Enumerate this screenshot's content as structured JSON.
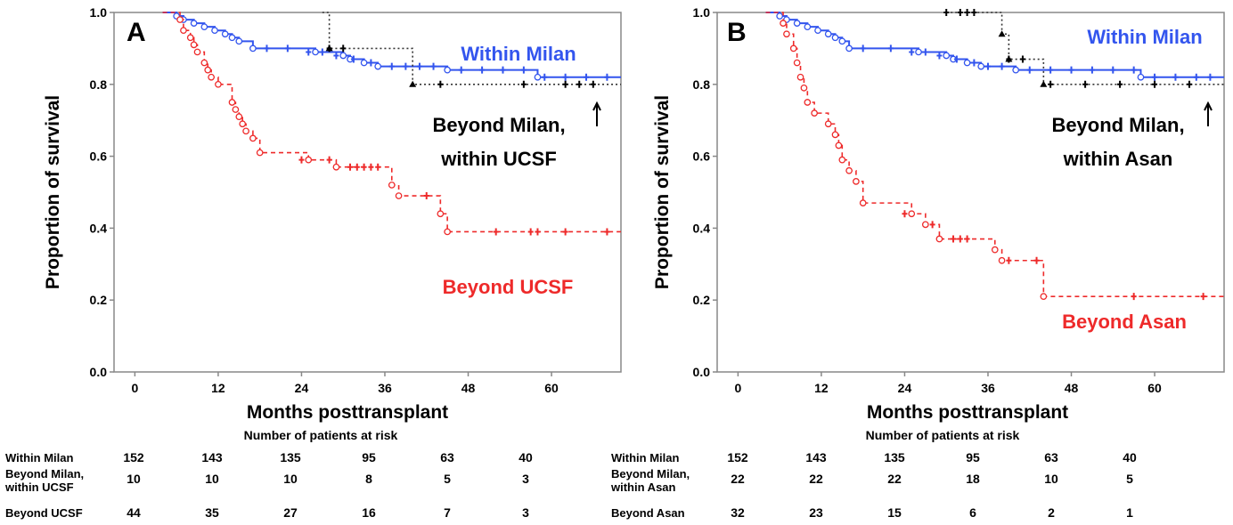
{
  "chart_data": [
    {
      "type": "line",
      "panel": "A",
      "title": "",
      "xlabel": "Months posttransplant",
      "ylabel": "Proportion of survival",
      "xlim": [
        -3,
        70
      ],
      "ylim": [
        0,
        1
      ],
      "xticks": [
        "0",
        "12",
        "24",
        "36",
        "48",
        "60"
      ],
      "yticks": [
        "0.0",
        "0.2",
        "0.4",
        "0.6",
        "0.8",
        "1.0"
      ],
      "grid": false,
      "series": [
        {
          "name": "Within Milan",
          "color": "#3355ee",
          "style": "solid",
          "steps": [
            [
              4,
              1.0
            ],
            [
              6,
              0.99
            ],
            [
              7,
              0.98
            ],
            [
              8.5,
              0.97
            ],
            [
              10,
              0.96
            ],
            [
              11.5,
              0.95
            ],
            [
              13,
              0.94
            ],
            [
              14,
              0.93
            ],
            [
              15,
              0.92
            ],
            [
              17,
              0.9
            ],
            [
              26,
              0.89
            ],
            [
              30,
              0.88
            ],
            [
              31,
              0.87
            ],
            [
              33,
              0.86
            ],
            [
              35,
              0.85
            ],
            [
              45,
              0.84
            ],
            [
              58,
              0.82
            ],
            [
              70,
              0.82
            ]
          ],
          "censored": [
            [
              19,
              0.9
            ],
            [
              22,
              0.9
            ],
            [
              25,
              0.89
            ],
            [
              27,
              0.89
            ],
            [
              29,
              0.88
            ],
            [
              31.5,
              0.87
            ],
            [
              34,
              0.86
            ],
            [
              37,
              0.85
            ],
            [
              39,
              0.85
            ],
            [
              41,
              0.85
            ],
            [
              43,
              0.85
            ],
            [
              47,
              0.84
            ],
            [
              50,
              0.84
            ],
            [
              53,
              0.84
            ],
            [
              56,
              0.84
            ],
            [
              59,
              0.82
            ],
            [
              62,
              0.82
            ],
            [
              65,
              0.82
            ],
            [
              68,
              0.82
            ]
          ]
        },
        {
          "name": "Beyond Milan, within UCSF",
          "color": "#333333",
          "style": "dotted",
          "steps": [
            [
              27,
              1.0
            ],
            [
              28,
              0.9
            ],
            [
              40,
              0.8
            ],
            [
              70,
              0.8
            ]
          ],
          "censored": [
            [
              28,
              0.9
            ],
            [
              30,
              0.9
            ],
            [
              44,
              0.8
            ],
            [
              56,
              0.8
            ],
            [
              62,
              0.8
            ],
            [
              64,
              0.8
            ],
            [
              66,
              0.8
            ]
          ]
        },
        {
          "name": "Beyond UCSF",
          "color": "#ee2a2a",
          "style": "dashed",
          "steps": [
            [
              4,
              1.0
            ],
            [
              6.5,
              0.98
            ],
            [
              7,
              0.95
            ],
            [
              8,
              0.93
            ],
            [
              8.5,
              0.91
            ],
            [
              9,
              0.89
            ],
            [
              10,
              0.86
            ],
            [
              10.5,
              0.84
            ],
            [
              11,
              0.82
            ],
            [
              12,
              0.8
            ],
            [
              14,
              0.75
            ],
            [
              14.5,
              0.73
            ],
            [
              15,
              0.71
            ],
            [
              15.5,
              0.69
            ],
            [
              16,
              0.67
            ],
            [
              17,
              0.65
            ],
            [
              18,
              0.61
            ],
            [
              25,
              0.59
            ],
            [
              29,
              0.57
            ],
            [
              37,
              0.52
            ],
            [
              38,
              0.49
            ],
            [
              44,
              0.44
            ],
            [
              45,
              0.39
            ],
            [
              70,
              0.39
            ]
          ],
          "censored": [
            [
              24,
              0.59
            ],
            [
              28,
              0.59
            ],
            [
              31,
              0.57
            ],
            [
              32,
              0.57
            ],
            [
              33,
              0.57
            ],
            [
              34,
              0.57
            ],
            [
              35,
              0.57
            ],
            [
              42,
              0.49
            ],
            [
              52,
              0.39
            ],
            [
              57,
              0.39
            ],
            [
              58,
              0.39
            ],
            [
              62,
              0.39
            ],
            [
              68,
              0.39
            ]
          ]
        }
      ],
      "annotations": {
        "within_milan": "Within Milan",
        "beyond_milan_line1": "Beyond Milan,",
        "beyond_milan_line2": "within UCSF",
        "beyond_last": "Beyond UCSF"
      },
      "at_risk": {
        "caption": "Number of patients at risk",
        "rows": [
          {
            "label1": "Within Milan",
            "label2": "",
            "values": [
              "152",
              "143",
              "135",
              "95",
              "63",
              "40"
            ]
          },
          {
            "label1": "Beyond Milan,",
            "label2": "within UCSF",
            "values": [
              "10",
              "10",
              "10",
              "8",
              "5",
              "3"
            ]
          },
          {
            "label1": "Beyond UCSF",
            "label2": "",
            "values": [
              "44",
              "35",
              "27",
              "16",
              "7",
              "3"
            ]
          }
        ]
      }
    },
    {
      "type": "line",
      "panel": "B",
      "title": "",
      "xlabel": "Months posttransplant",
      "ylabel": "Proportion of survival",
      "xlim": [
        -3,
        70
      ],
      "ylim": [
        0,
        1
      ],
      "xticks": [
        "0",
        "12",
        "24",
        "36",
        "48",
        "60"
      ],
      "yticks": [
        "0.0",
        "0.2",
        "0.4",
        "0.6",
        "0.8",
        "1.0"
      ],
      "grid": false,
      "series": [
        {
          "name": "Within Milan",
          "color": "#3355ee",
          "style": "solid",
          "steps": [
            [
              4,
              1.0
            ],
            [
              6,
              0.99
            ],
            [
              7,
              0.98
            ],
            [
              8.5,
              0.97
            ],
            [
              10,
              0.96
            ],
            [
              11.5,
              0.95
            ],
            [
              13,
              0.94
            ],
            [
              14,
              0.93
            ],
            [
              15,
              0.92
            ],
            [
              16,
              0.9
            ],
            [
              26,
              0.89
            ],
            [
              30,
              0.88
            ],
            [
              31,
              0.87
            ],
            [
              33,
              0.86
            ],
            [
              35,
              0.85
            ],
            [
              40,
              0.84
            ],
            [
              58,
              0.82
            ],
            [
              70,
              0.82
            ]
          ],
          "censored": [
            [
              18,
              0.9
            ],
            [
              22,
              0.9
            ],
            [
              25,
              0.89
            ],
            [
              27,
              0.89
            ],
            [
              29,
              0.88
            ],
            [
              31.5,
              0.87
            ],
            [
              34,
              0.86
            ],
            [
              36,
              0.85
            ],
            [
              38,
              0.85
            ],
            [
              42,
              0.84
            ],
            [
              45,
              0.84
            ],
            [
              48,
              0.84
            ],
            [
              51,
              0.84
            ],
            [
              54,
              0.84
            ],
            [
              57,
              0.84
            ],
            [
              60,
              0.82
            ],
            [
              63,
              0.82
            ],
            [
              66,
              0.82
            ],
            [
              68,
              0.82
            ]
          ]
        },
        {
          "name": "Beyond Milan, within Asan",
          "color": "#333333",
          "style": "dotted",
          "steps": [
            [
              30,
              1.0
            ],
            [
              38,
              0.94
            ],
            [
              39,
              0.87
            ],
            [
              44,
              0.8
            ],
            [
              70,
              0.8
            ]
          ],
          "censored": [
            [
              30,
              1.0
            ],
            [
              32,
              1.0
            ],
            [
              33,
              1.0
            ],
            [
              34,
              1.0
            ],
            [
              39,
              0.87
            ],
            [
              41,
              0.87
            ],
            [
              45,
              0.8
            ],
            [
              50,
              0.8
            ],
            [
              55,
              0.8
            ],
            [
              60,
              0.8
            ],
            [
              65,
              0.8
            ]
          ]
        },
        {
          "name": "Beyond Asan",
          "color": "#ee2a2a",
          "style": "dashed",
          "steps": [
            [
              4,
              1.0
            ],
            [
              6.5,
              0.97
            ],
            [
              7,
              0.94
            ],
            [
              8,
              0.9
            ],
            [
              8.5,
              0.86
            ],
            [
              9,
              0.82
            ],
            [
              9.5,
              0.79
            ],
            [
              10,
              0.75
            ],
            [
              11,
              0.72
            ],
            [
              13,
              0.69
            ],
            [
              14,
              0.66
            ],
            [
              14.5,
              0.63
            ],
            [
              15,
              0.59
            ],
            [
              16,
              0.56
            ],
            [
              17,
              0.53
            ],
            [
              18,
              0.47
            ],
            [
              25,
              0.44
            ],
            [
              27,
              0.41
            ],
            [
              29,
              0.37
            ],
            [
              37,
              0.34
            ],
            [
              38,
              0.31
            ],
            [
              44,
              0.21
            ],
            [
              70,
              0.21
            ]
          ],
          "censored": [
            [
              24,
              0.44
            ],
            [
              28,
              0.41
            ],
            [
              31,
              0.37
            ],
            [
              32,
              0.37
            ],
            [
              33,
              0.37
            ],
            [
              39,
              0.31
            ],
            [
              43,
              0.31
            ],
            [
              57,
              0.21
            ],
            [
              67,
              0.21
            ]
          ]
        }
      ],
      "annotations": {
        "within_milan": "Within Milan",
        "beyond_milan_line1": "Beyond Milan,",
        "beyond_milan_line2": "within Asan",
        "beyond_last": "Beyond Asan"
      },
      "at_risk": {
        "caption": "Number of patients at risk",
        "rows": [
          {
            "label1": "Within Milan",
            "label2": "",
            "values": [
              "152",
              "143",
              "135",
              "95",
              "63",
              "40"
            ]
          },
          {
            "label1": "Beyond Milan,",
            "label2": "within Asan",
            "values": [
              "22",
              "22",
              "22",
              "18",
              "10",
              "5"
            ]
          },
          {
            "label1": "Beyond Asan",
            "label2": "",
            "values": [
              "32",
              "23",
              "15",
              "6",
              "2",
              "1"
            ]
          }
        ]
      }
    }
  ]
}
